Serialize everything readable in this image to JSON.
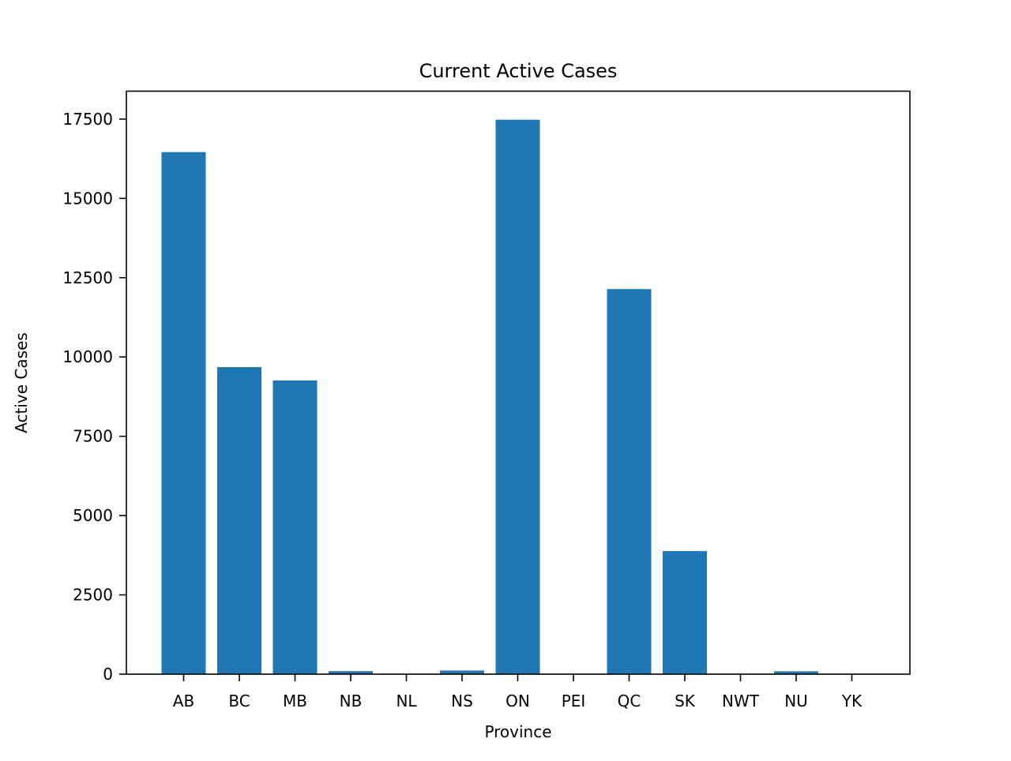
{
  "chart_data": {
    "type": "bar",
    "title": "Current Active Cases",
    "xlabel": "Province",
    "ylabel": "Active Cases",
    "categories": [
      "AB",
      "BC",
      "MB",
      "NB",
      "NL",
      "NS",
      "ON",
      "PEI",
      "QC",
      "SK",
      "NWT",
      "NU",
      "YK"
    ],
    "values": [
      16460,
      9680,
      9260,
      95,
      5,
      115,
      17480,
      3,
      12140,
      3880,
      2,
      90,
      2
    ],
    "ylim": [
      0,
      18380
    ],
    "yticks": [
      0,
      2500,
      5000,
      7500,
      10000,
      12500,
      15000,
      17500
    ],
    "ytick_labels": [
      "0",
      "2500",
      "5000",
      "7500",
      "10000",
      "12500",
      "15000",
      "17500"
    ],
    "grid": false,
    "bar_color": "#1f77b4"
  }
}
